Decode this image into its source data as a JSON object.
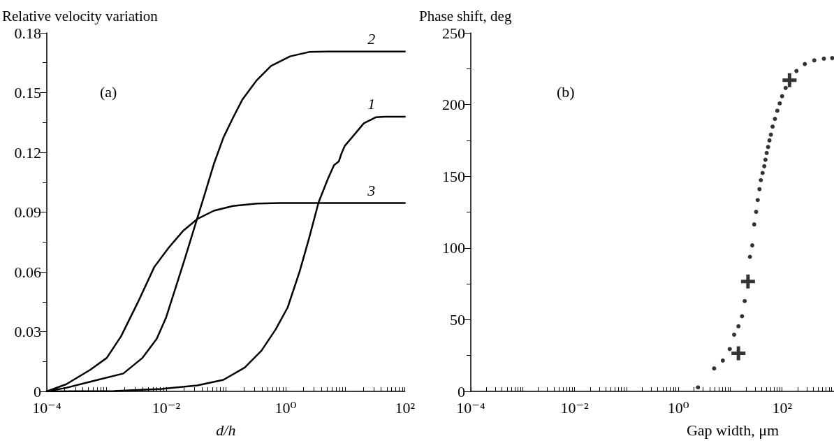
{
  "chart_data": [
    {
      "type": "line",
      "ylabel": "Relative velocity variation",
      "xlabel": "d/h",
      "annotations": [
        "(a)"
      ],
      "log": "x",
      "xlim": [
        0.0001,
        100
      ],
      "xticks": [
        {
          "value": 0.0001,
          "label": "10⁻⁴"
        },
        {
          "value": 0.01,
          "label": "10⁻²"
        },
        {
          "value": 1,
          "label": "10⁰"
        },
        {
          "value": 100,
          "label": "10²"
        }
      ],
      "ylim": [
        0,
        0.18
      ],
      "yticks": [
        0,
        0.03,
        0.06,
        0.09,
        0.12,
        0.15,
        0.18
      ],
      "grid": false,
      "legend": false,
      "marker": "none",
      "line_style": "solid",
      "series": [
        {
          "name": "1",
          "color": "#000000",
          "x": [
            0.0001,
            0.00133,
            0.00836,
            0.0331,
            0.091,
            0.2075,
            0.394,
            0.685,
            1.084,
            1.72,
            2.48,
            3.58,
            5.16,
            6.5,
            7.8,
            8.55,
            9.8,
            12.9,
            20.5,
            32.4,
            46.8,
            100
          ],
          "values": [
            0,
            0.0002,
            0.0012,
            0.003,
            0.0058,
            0.012,
            0.0204,
            0.0312,
            0.0421,
            0.0601,
            0.0769,
            0.0949,
            0.1069,
            0.1136,
            0.1154,
            0.119,
            0.1232,
            0.1274,
            0.1346,
            0.1376,
            0.1379,
            0.1379
          ]
        },
        {
          "name": "2",
          "color": "#000000",
          "x": [
            0.0001,
            0.000212,
            0.000532,
            0.00192,
            0.004,
            0.00695,
            0.01,
            0.0145,
            0.0209,
            0.0302,
            0.0437,
            0.063,
            0.091,
            0.13,
            0.19,
            0.329,
            0.57,
            1.19,
            2.48,
            5.16,
            100
          ],
          "values": [
            0,
            0.0018,
            0.0048,
            0.009,
            0.0168,
            0.0264,
            0.0372,
            0.0523,
            0.0673,
            0.0829,
            0.0985,
            0.1142,
            0.1274,
            0.137,
            0.1466,
            0.1562,
            0.1634,
            0.1682,
            0.1704,
            0.1706,
            0.1706
          ]
        },
        {
          "name": "3",
          "color": "#000000",
          "x": [
            0.0001,
            0.000212,
            0.000532,
            0.00101,
            0.00175,
            0.00333,
            0.00634,
            0.011,
            0.0191,
            0.0331,
            0.063,
            0.131,
            0.329,
            0.82,
            100
          ],
          "values": [
            0,
            0.0036,
            0.0108,
            0.0168,
            0.0276,
            0.0445,
            0.0625,
            0.0721,
            0.0805,
            0.0865,
            0.0907,
            0.0931,
            0.0943,
            0.0946,
            0.0946
          ]
        }
      ]
    },
    {
      "type": "scatter",
      "ylabel": "Phase shift, deg",
      "xlabel": "Gap width, μm",
      "annotations": [
        "(b)"
      ],
      "log": "x",
      "xlim": [
        0.0001,
        1000
      ],
      "xticks": [
        {
          "value": 0.0001,
          "label": "10⁻⁴"
        },
        {
          "value": 0.01,
          "label": "10⁻²"
        },
        {
          "value": 1,
          "label": "10⁰"
        },
        {
          "value": 100,
          "label": "10²"
        }
      ],
      "ylim": [
        0,
        250
      ],
      "yticks": [
        0,
        50,
        100,
        150,
        200,
        250
      ],
      "grid": false,
      "legend": false,
      "series": [
        {
          "color": "#000000",
          "marker": "circle",
          "x": [
            2.39,
            4.9,
            7.2,
            9.8,
            11.9,
            14.4,
            16.9,
            19,
            24,
            26.6,
            29,
            31.6,
            33.9,
            36.6,
            38.9,
            42,
            45.3,
            47.8,
            50.4,
            53.7,
            57,
            60.8,
            65.5,
            72.7,
            80.8,
            90,
            100,
            117,
            144,
            189,
            274,
            417,
            638,
            923
          ],
          "values": [
            2.8,
            16,
            21.5,
            29.5,
            39.5,
            45.4,
            52.4,
            63,
            93.8,
            101.8,
            116.4,
            125.2,
            133.4,
            141,
            147.3,
            152.3,
            157,
            161.5,
            166.2,
            170.4,
            175,
            179,
            184.6,
            190,
            195.7,
            200.8,
            205.8,
            211.6,
            null,
            223.4,
            228.3,
            230.8,
            232,
            232.4
          ]
        },
        {
          "color": "#000000",
          "marker": "cross",
          "x": [
            14.4,
            22,
            139
          ],
          "values": [
            26.6,
            76.6,
            217
          ]
        }
      ]
    }
  ]
}
